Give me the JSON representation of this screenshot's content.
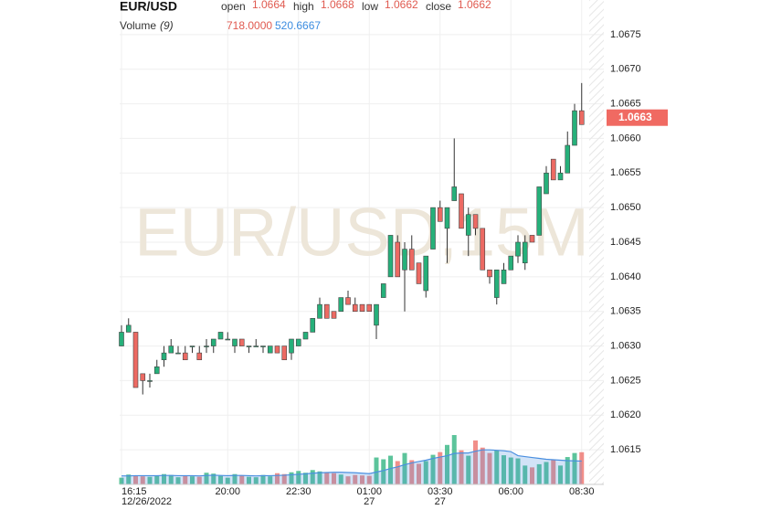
{
  "chart_data": {
    "type": "candlestick",
    "title": "EUR/USD",
    "watermark": "EUR/USD,15M",
    "legend_labels": [
      "open",
      "high",
      "low",
      "close"
    ],
    "legend_values": [
      1.0664,
      1.0668,
      1.0662,
      1.0662
    ],
    "volume_title": "Volume",
    "volume_period": "(9)",
    "volume_legend_values": [
      {
        "value": 718,
        "label": "718.0000"
      },
      {
        "value": 520.6667,
        "label": "520.6667"
      }
    ],
    "last_price": 1.0663,
    "up_color": "#26b07a",
    "down_color": "#ec6a63",
    "ma_color": "#4a8fe0",
    "grid": true,
    "ylim": [
      1.061,
      1.068
    ],
    "yticks": [
      {
        "value": 1.0615,
        "label": "1.0615"
      },
      {
        "value": 1.062,
        "label": "1.0620"
      },
      {
        "value": 1.0625,
        "label": "1.0625"
      },
      {
        "value": 1.063,
        "label": "1.0630"
      },
      {
        "value": 1.0635,
        "label": "1.0635"
      },
      {
        "value": 1.064,
        "label": "1.0640"
      },
      {
        "value": 1.0645,
        "label": "1.0645"
      },
      {
        "value": 1.065,
        "label": "1.0650"
      },
      {
        "value": 1.0655,
        "label": "1.0655"
      },
      {
        "value": 1.066,
        "label": "1.0660"
      },
      {
        "value": 1.0665,
        "label": "1.0665"
      },
      {
        "value": 1.067,
        "label": "1.0670"
      },
      {
        "value": 1.0675,
        "label": "1.0675"
      }
    ],
    "categories": [
      "16:15",
      null,
      null,
      null,
      null,
      null,
      null,
      null,
      null,
      null,
      null,
      null,
      null,
      null,
      null,
      "20:00",
      null,
      null,
      null,
      null,
      null,
      null,
      null,
      null,
      null,
      "22:30",
      null,
      null,
      null,
      null,
      null,
      null,
      null,
      null,
      null,
      "01:00",
      null,
      null,
      null,
      null,
      null,
      null,
      null,
      null,
      null,
      "03:30",
      null,
      null,
      null,
      null,
      null,
      null,
      null,
      null,
      null,
      "06:00",
      null,
      null,
      null,
      null,
      null,
      null,
      null,
      null,
      null,
      "08:30"
    ],
    "date_labels": [
      "12/26/2022",
      null,
      null,
      null,
      null,
      null,
      null,
      null,
      null,
      null,
      null,
      null,
      null,
      null,
      null,
      null,
      null,
      null,
      null,
      null,
      null,
      null,
      null,
      null,
      null,
      null,
      null,
      null,
      null,
      null,
      null,
      null,
      null,
      null,
      null,
      "27",
      null,
      null,
      null,
      null,
      null,
      null,
      null,
      null,
      null,
      "27",
      null,
      null,
      null,
      null,
      null,
      null,
      null,
      null,
      null,
      null,
      null,
      null,
      null,
      null,
      null,
      null,
      null,
      null,
      null,
      null
    ],
    "open": [
      1.063,
      1.0632,
      1.0632,
      1.0626,
      1.0625,
      1.0626,
      1.0628,
      1.0629,
      1.0629,
      1.0629,
      1.063,
      1.0629,
      1.063,
      1.063,
      1.0631,
      1.0631,
      1.063,
      1.0631,
      1.063,
      1.063,
      1.063,
      1.0629,
      1.063,
      1.063,
      1.0629,
      1.063,
      1.0631,
      1.0632,
      1.0634,
      1.0636,
      1.0635,
      1.0635,
      1.0637,
      1.0636,
      1.0636,
      1.0636,
      1.0633,
      1.0637,
      1.064,
      1.0645,
      1.0641,
      1.0644,
      1.0642,
      1.0638,
      1.0644,
      1.065,
      1.0647,
      1.0651,
      1.0652,
      1.0646,
      1.0649,
      1.0647,
      1.0641,
      1.0637,
      1.0639,
      1.0641,
      1.0643,
      1.0642,
      1.0646,
      1.0646,
      1.0652,
      1.0657,
      1.0654,
      1.0655,
      1.0659,
      1.0664
    ],
    "high": [
      1.0633,
      1.0634,
      1.0632,
      1.0626,
      1.0626,
      1.0628,
      1.063,
      1.0631,
      1.063,
      1.063,
      1.063,
      1.063,
      1.0631,
      1.0631,
      1.0632,
      1.0632,
      1.0631,
      1.0631,
      1.063,
      1.0631,
      1.063,
      1.063,
      1.063,
      1.063,
      1.0631,
      1.0631,
      1.0632,
      1.0634,
      1.0637,
      1.0636,
      1.0635,
      1.0637,
      1.0638,
      1.0637,
      1.0636,
      1.0636,
      1.0636,
      1.0639,
      1.0646,
      1.0646,
      1.0645,
      1.0646,
      1.0642,
      1.0643,
      1.065,
      1.0651,
      1.065,
      1.066,
      1.0652,
      1.065,
      1.0649,
      1.0647,
      1.0641,
      1.0641,
      1.0642,
      1.0643,
      1.0646,
      1.0646,
      1.0646,
      1.0653,
      1.0656,
      1.0657,
      1.0656,
      1.0661,
      1.0665,
      1.0668
    ],
    "low": [
      1.063,
      1.0632,
      1.0624,
      1.0623,
      1.0624,
      1.0626,
      1.0627,
      1.0629,
      1.0629,
      1.0628,
      1.0629,
      1.0628,
      1.0629,
      1.0629,
      1.0631,
      1.0631,
      1.0629,
      1.063,
      1.0629,
      1.063,
      1.0629,
      1.0629,
      1.0629,
      1.0628,
      1.0628,
      1.063,
      1.0631,
      1.0632,
      1.0634,
      1.0634,
      1.0634,
      1.0635,
      1.0636,
      1.0635,
      1.0635,
      1.0635,
      1.0631,
      1.0637,
      1.064,
      1.064,
      1.0635,
      1.0641,
      1.0639,
      1.0637,
      1.0644,
      1.0648,
      1.0642,
      1.0651,
      1.0647,
      1.0643,
      1.0646,
      1.0641,
      1.0639,
      1.0636,
      1.0639,
      1.0641,
      1.0642,
      1.0641,
      1.0645,
      1.0646,
      1.0652,
      1.0654,
      1.0654,
      1.0655,
      1.0659,
      1.0662
    ],
    "close": [
      1.0632,
      1.0633,
      1.0624,
      1.0625,
      1.0625,
      1.0627,
      1.0629,
      1.063,
      1.0629,
      1.0628,
      1.063,
      1.0628,
      1.063,
      1.0631,
      1.0632,
      1.0631,
      1.0631,
      1.063,
      1.063,
      1.063,
      1.063,
      1.063,
      1.0629,
      1.0628,
      1.0631,
      1.0631,
      1.0632,
      1.0634,
      1.0636,
      1.0634,
      1.0634,
      1.0637,
      1.0636,
      1.0635,
      1.0635,
      1.0635,
      1.0636,
      1.0639,
      1.0646,
      1.064,
      1.0644,
      1.0641,
      1.0639,
      1.0643,
      1.065,
      1.0648,
      1.065,
      1.0653,
      1.0647,
      1.0649,
      1.0647,
      1.0641,
      1.064,
      1.0641,
      1.0641,
      1.0643,
      1.0645,
      1.0645,
      1.0645,
      1.0653,
      1.0655,
      1.0654,
      1.0655,
      1.0659,
      1.0664,
      1.0662
    ],
    "volume": [
      150,
      220,
      200,
      180,
      170,
      190,
      230,
      210,
      160,
      200,
      180,
      170,
      260,
      240,
      190,
      150,
      230,
      200,
      170,
      160,
      210,
      180,
      250,
      230,
      270,
      300,
      260,
      320,
      290,
      260,
      250,
      220,
      180,
      210,
      200,
      190,
      600,
      560,
      640,
      520,
      700,
      540,
      460,
      520,
      660,
      720,
      880,
      1100,
      760,
      640,
      980,
      820,
      700,
      760,
      650,
      600,
      580,
      420,
      380,
      450,
      500,
      560,
      420,
      610,
      700,
      718
    ],
    "volume_ma": [
      190,
      190,
      195,
      195,
      195,
      195,
      200,
      200,
      195,
      195,
      195,
      190,
      200,
      205,
      200,
      195,
      200,
      200,
      195,
      190,
      195,
      195,
      200,
      205,
      215,
      225,
      235,
      250,
      260,
      265,
      270,
      270,
      265,
      260,
      250,
      240,
      275,
      310,
      355,
      390,
      440,
      480,
      510,
      540,
      580,
      610,
      640,
      690,
      700,
      700,
      740,
      770,
      770,
      760,
      750,
      730,
      640,
      620,
      600,
      580,
      560,
      550,
      540,
      530,
      525,
      520.6667
    ]
  }
}
